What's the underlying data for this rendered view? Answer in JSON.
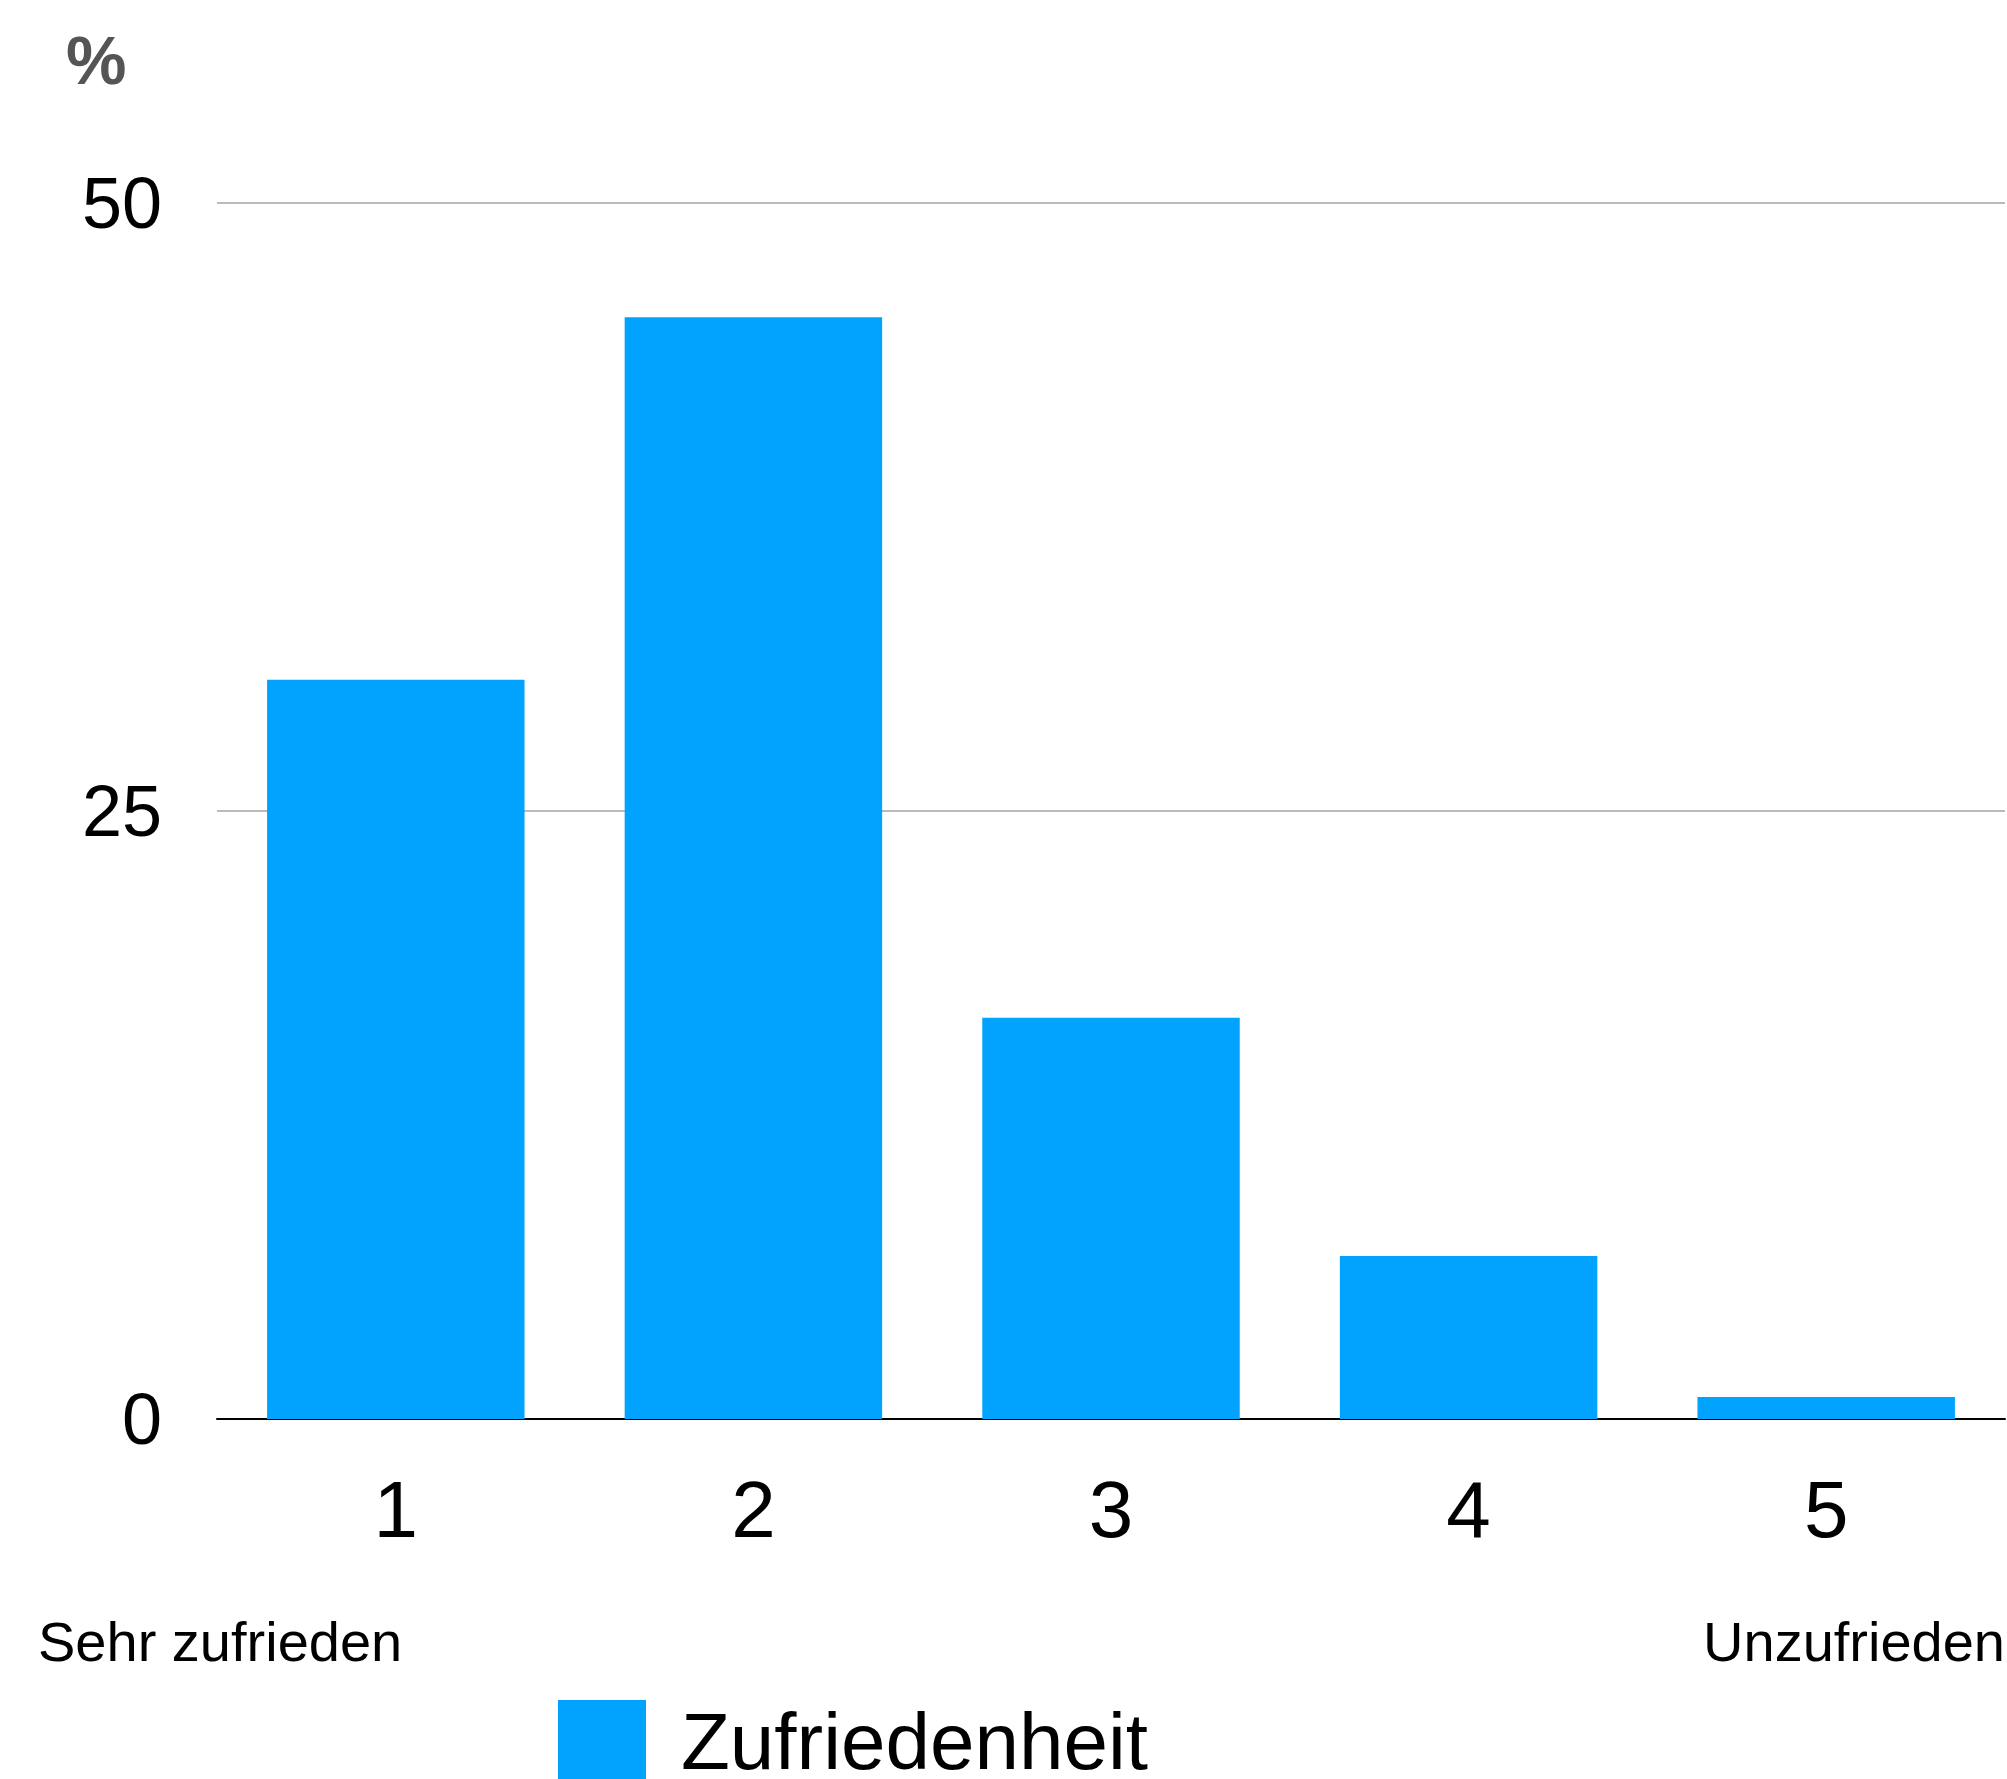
{
  "chart_data": {
    "type": "bar",
    "ylabel": "%",
    "categories": [
      "1",
      "2",
      "3",
      "4",
      "5"
    ],
    "series": [
      {
        "name": "Zufriedenheit",
        "color": "#02a3fe",
        "values": [
          30.4,
          45.3,
          16.5,
          6.7,
          0.9
        ]
      }
    ],
    "ylim": [
      0,
      50
    ],
    "yticks": [
      0,
      25,
      50
    ],
    "grid": "y",
    "legend": "bottom",
    "annotations": [
      "Sehr zufrieden",
      "Unzufrieden"
    ]
  }
}
